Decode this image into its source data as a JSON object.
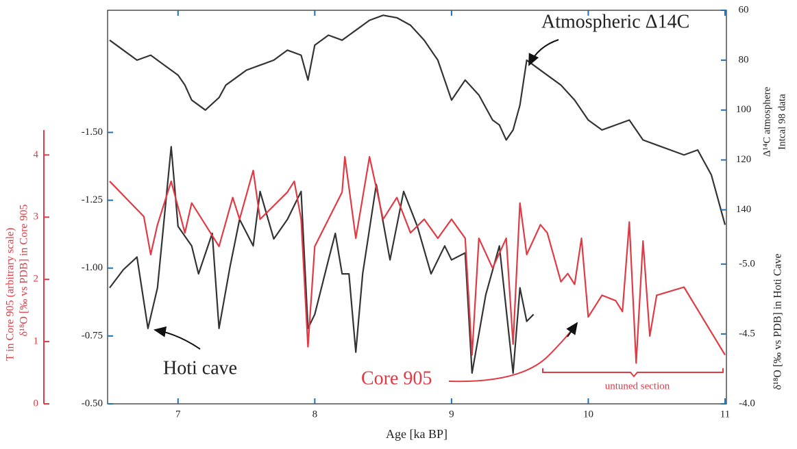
{
  "chart_data": {
    "type": "line",
    "x_label": "Age [ka BP]",
    "xlim": [
      6.5,
      11
    ],
    "xticks": [
      7,
      8,
      9,
      10,
      11
    ],
    "y_label": "δ¹⁸O [‰ vs PDB] in Core 905",
    "ylim": [
      -0.5,
      -1.95
    ],
    "yticks": [
      {
        "value": -1.5,
        "label": "-1.50"
      },
      {
        "value": -1.25,
        "label": "-1.25"
      },
      {
        "value": -1.0,
        "label": "-1.00"
      },
      {
        "value": -0.75,
        "label": "-0.75"
      },
      {
        "value": -0.5,
        "label": "-0.50"
      }
    ],
    "t_axis": {
      "label": "T in Core 905 (arbitrary scale)",
      "lim": [
        0,
        4.4
      ],
      "ticks": [
        0,
        1,
        2,
        3,
        4
      ],
      "color": "#e03a44"
    },
    "y2_label": [
      "Δ¹⁴C atmosphere",
      "Intcal 98 data"
    ],
    "y2lim": [
      60,
      150
    ],
    "y2ticks": [
      60,
      80,
      100,
      120,
      140
    ],
    "y3_axis": {
      "label": "δ¹⁸O [‰ vs PDB] in Hoti Cave",
      "lim": [
        -4.0,
        -5.2
      ],
      "ticks": [
        {
          "value": -5.0,
          "label": "-5.0"
        },
        {
          "value": -4.5,
          "label": "-4.5"
        },
        {
          "value": -4.0,
          "label": "-4.0"
        }
      ]
    },
    "annotations": [
      "Atmospheric Δ14C",
      "Hoti cave",
      "Core 905",
      "untuned section"
    ],
    "series": [
      {
        "name": "Atmospheric Δ14C",
        "color": "#333333",
        "axis": "y2",
        "x": [
          6.5,
          6.6,
          6.7,
          6.8,
          6.9,
          7.0,
          7.05,
          7.1,
          7.2,
          7.3,
          7.35,
          7.45,
          7.5,
          7.6,
          7.7,
          7.8,
          7.9,
          7.95,
          8.0,
          8.1,
          8.2,
          8.3,
          8.4,
          8.5,
          8.6,
          8.7,
          8.8,
          8.9,
          9.0,
          9.1,
          9.2,
          9.3,
          9.35,
          9.4,
          9.45,
          9.5,
          9.55,
          9.6,
          9.7,
          9.8,
          9.9,
          10.0,
          10.1,
          10.2,
          10.3,
          10.4,
          10.5,
          10.6,
          10.7,
          10.8,
          10.9,
          11.0
        ],
        "values": [
          72,
          76,
          80,
          78,
          82,
          86,
          90,
          96,
          100,
          95,
          90,
          86,
          84,
          82,
          80,
          76,
          78,
          88,
          74,
          70,
          72,
          68,
          64,
          62,
          63,
          66,
          72,
          80,
          96,
          88,
          94,
          104,
          106,
          112,
          108,
          98,
          80,
          82,
          86,
          90,
          96,
          104,
          108,
          106,
          104,
          112,
          114,
          116,
          118,
          116,
          126,
          146
        ]
      },
      {
        "name": "Hoti cave",
        "color": "#333333",
        "axis": "y3",
        "x": [
          6.5,
          6.6,
          6.7,
          6.78,
          6.85,
          6.95,
          7.0,
          7.1,
          7.15,
          7.25,
          7.3,
          7.38,
          7.45,
          7.55,
          7.6,
          7.7,
          7.8,
          7.9,
          7.95,
          8.0,
          8.1,
          8.15,
          8.2,
          8.25,
          8.3,
          8.35,
          8.45,
          8.55,
          8.65,
          8.75,
          8.85,
          8.95,
          9.0,
          9.1,
          9.15,
          9.25,
          9.35,
          9.45,
          9.5,
          9.55,
          9.6
        ],
        "values": [
          -4.83,
          -4.96,
          -5.05,
          -4.54,
          -4.83,
          -5.84,
          -5.27,
          -5.13,
          -4.93,
          -5.22,
          -4.54,
          -4.98,
          -5.32,
          -5.13,
          -5.52,
          -5.18,
          -5.32,
          -5.52,
          -4.54,
          -4.64,
          -5.03,
          -5.22,
          -4.93,
          -4.93,
          -4.37,
          -4.93,
          -5.57,
          -5.03,
          -5.52,
          -5.27,
          -4.93,
          -5.13,
          -5.03,
          -5.08,
          -4.22,
          -4.78,
          -5.13,
          -4.22,
          -4.83,
          -4.59,
          -4.64
        ]
      },
      {
        "name": "Core 905",
        "color": "#e03a44",
        "axis": "y",
        "x": [
          6.5,
          6.75,
          6.8,
          6.85,
          6.95,
          7.05,
          7.1,
          7.2,
          7.3,
          7.4,
          7.45,
          7.55,
          7.6,
          7.7,
          7.8,
          7.85,
          7.9,
          7.95,
          8.0,
          8.1,
          8.2,
          8.22,
          8.3,
          8.4,
          8.5,
          8.6,
          8.7,
          8.8,
          8.9,
          9.0,
          9.1,
          9.15,
          9.2,
          9.3,
          9.4,
          9.45,
          9.5,
          9.55,
          9.65,
          9.7,
          9.8,
          9.85,
          9.9,
          9.95,
          10.0,
          10.1,
          10.2,
          10.25,
          10.3,
          10.35,
          10.4,
          10.45,
          10.5,
          10.7,
          11.0
        ],
        "values": [
          -1.32,
          -1.19,
          -1.05,
          -1.16,
          -1.32,
          -1.13,
          -1.24,
          -1.16,
          -1.08,
          -1.26,
          -1.18,
          -1.36,
          -1.18,
          -1.23,
          -1.28,
          -1.32,
          -1.18,
          -0.71,
          -1.08,
          -1.18,
          -1.28,
          -1.41,
          -1.11,
          -1.41,
          -1.18,
          -1.26,
          -1.13,
          -1.18,
          -1.11,
          -1.18,
          -1.11,
          -0.68,
          -1.11,
          -1.0,
          -1.11,
          -0.72,
          -1.24,
          -1.05,
          -1.16,
          -1.13,
          -0.95,
          -0.98,
          -0.94,
          -1.11,
          -0.82,
          -0.9,
          -0.88,
          -0.84,
          -1.17,
          -0.65,
          -1.1,
          -0.75,
          -0.9,
          -0.93,
          -0.68
        ]
      }
    ]
  }
}
